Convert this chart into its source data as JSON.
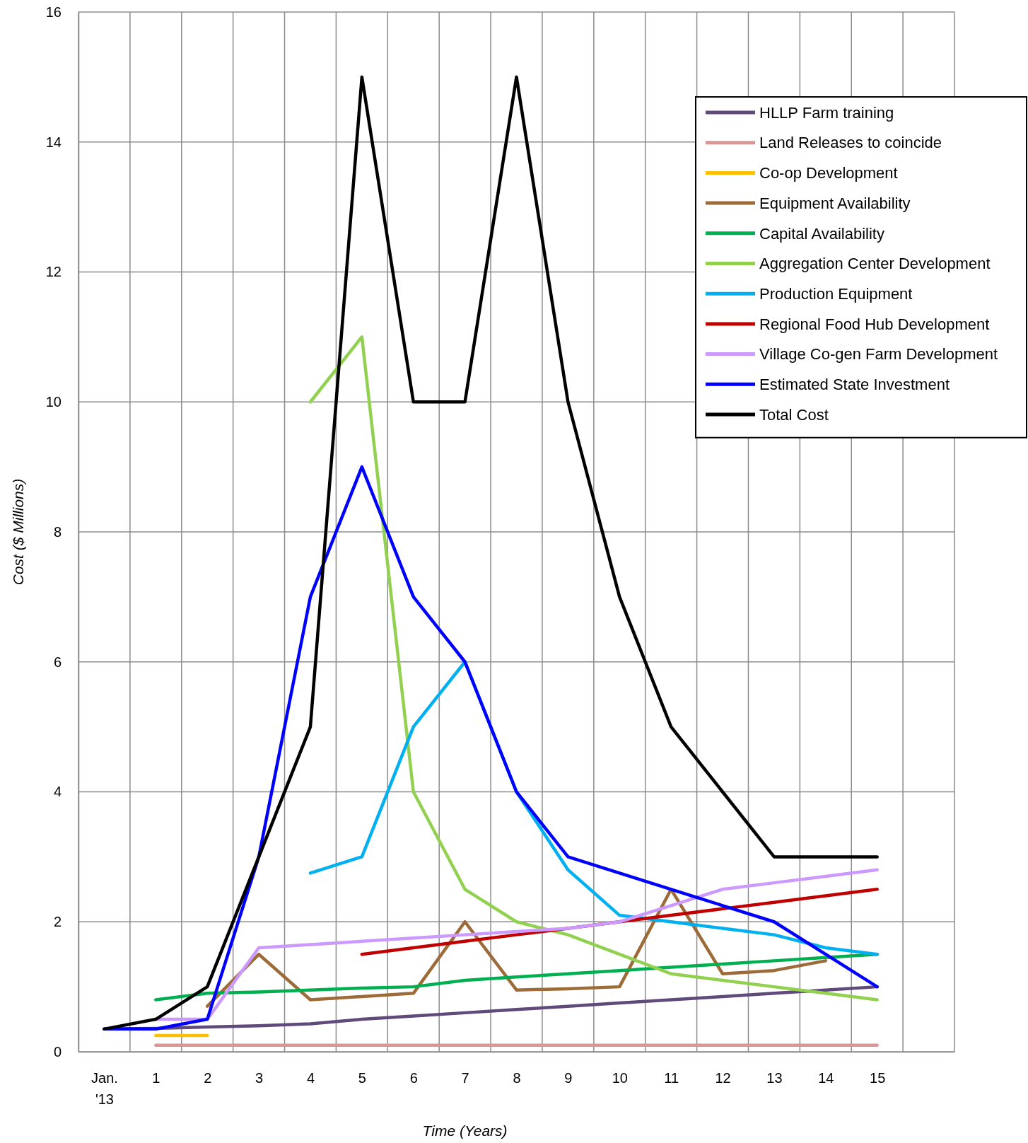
{
  "chart_data": {
    "type": "line",
    "xlabel": "Time (Years)",
    "ylabel": "Cost ($ Millions)",
    "xlim": [
      -0.5,
      16.5
    ],
    "ylim": [
      0,
      16
    ],
    "xticks": [
      {
        "value": -0.5,
        "label": null
      },
      {
        "value": 0,
        "label": "Jan. '13"
      },
      {
        "value": 0.5,
        "label": null
      },
      1,
      {
        "value": 1.5,
        "label": null
      },
      2,
      {
        "value": 2.5,
        "label": null
      },
      3,
      {
        "value": 3.5,
        "label": null
      },
      4,
      {
        "value": 4.5,
        "label": null
      },
      5,
      {
        "value": 5.5,
        "label": null
      },
      6,
      {
        "value": 6.5,
        "label": null
      },
      7,
      {
        "value": 7.5,
        "label": null
      },
      8,
      {
        "value": 8.5,
        "label": null
      },
      9,
      {
        "value": 9.5,
        "label": null
      },
      10,
      {
        "value": 10.5,
        "label": null
      },
      11,
      {
        "value": 11.5,
        "label": null
      },
      12,
      {
        "value": 12.5,
        "label": null
      },
      13,
      {
        "value": 13.5,
        "label": null
      },
      14,
      {
        "value": 14.5,
        "label": null
      },
      15,
      {
        "value": 15.5,
        "label": null
      },
      {
        "value": 16.5,
        "label": null
      }
    ],
    "yticks": [
      0,
      2,
      4,
      6,
      8,
      10,
      12,
      14,
      16
    ],
    "grid": true,
    "legend": "top right",
    "marker": "none",
    "line_style": "solid",
    "series": [
      {
        "name": "HLLP Farm training",
        "color": "#604a7b",
        "x": [
          0,
          1,
          2,
          3,
          4,
          5,
          6,
          7,
          8,
          9,
          10,
          11,
          12,
          13,
          14,
          15
        ],
        "values": [
          0.35,
          0.36,
          0.38,
          0.4,
          0.43,
          0.5,
          0.55,
          0.6,
          0.65,
          0.7,
          0.75,
          0.8,
          0.85,
          0.9,
          0.95,
          1.0
        ]
      },
      {
        "name": "Land Releases to coincide",
        "color": "#d99694",
        "x": [
          1,
          2,
          3,
          4,
          5,
          6,
          7,
          8,
          9,
          10,
          11,
          12,
          13,
          14,
          15
        ],
        "values": [
          0.1,
          0.1,
          0.1,
          0.1,
          0.1,
          0.1,
          0.1,
          0.1,
          0.1,
          0.1,
          0.1,
          0.1,
          0.1,
          0.1,
          0.1
        ]
      },
      {
        "name": "Co-op Development",
        "color": "#ffc000",
        "x": [
          1,
          2
        ],
        "values": [
          0.25,
          0.25
        ]
      },
      {
        "name": "Equipment Availability",
        "color": "#9c6b38",
        "x": [
          2,
          3,
          4,
          5,
          6,
          7,
          8,
          9,
          10,
          11,
          12,
          13,
          14
        ],
        "values": [
          0.7,
          1.5,
          0.8,
          0.85,
          0.9,
          2.0,
          0.95,
          0.97,
          1.0,
          2.5,
          1.2,
          1.25,
          1.4
        ]
      },
      {
        "name": "Capital Availability",
        "color": "#00b050",
        "x": [
          1,
          2,
          3,
          4,
          5,
          6,
          7,
          8,
          9,
          10,
          11,
          12,
          13,
          14,
          15
        ],
        "values": [
          0.8,
          0.9,
          0.92,
          0.95,
          0.98,
          1.0,
          1.1,
          1.15,
          1.2,
          1.25,
          1.3,
          1.35,
          1.4,
          1.45,
          1.5
        ]
      },
      {
        "name": "Aggregation Center Development",
        "color": "#92d050",
        "x": [
          4,
          5,
          6,
          7,
          8,
          9,
          10,
          11,
          12,
          13,
          14,
          15
        ],
        "values": [
          10,
          11,
          4,
          2.5,
          2.0,
          1.8,
          1.5,
          1.2,
          1.1,
          1.0,
          0.9,
          0.8
        ]
      },
      {
        "name": "Production Equipment",
        "color": "#00b0f0",
        "x": [
          4,
          5,
          6,
          7,
          8,
          9,
          10,
          11,
          12,
          13,
          14,
          15
        ],
        "values": [
          2.75,
          3.0,
          5.0,
          6.0,
          4.0,
          2.8,
          2.1,
          2.0,
          1.9,
          1.8,
          1.6,
          1.5
        ]
      },
      {
        "name": "Regional Food Hub Development",
        "color": "#c00000",
        "x": [
          5,
          6,
          7,
          8,
          9,
          10,
          11,
          12,
          13,
          14,
          15
        ],
        "values": [
          1.5,
          1.6,
          1.7,
          1.8,
          null,
          2.0,
          2.1,
          2.2,
          2.3,
          2.4,
          2.5
        ]
      },
      {
        "name": "Village Co-gen Farm Development",
        "color": "#cc99ff",
        "x": [
          1,
          2,
          3,
          4,
          5,
          6,
          7,
          8,
          9,
          10,
          11,
          12,
          13,
          14,
          15
        ],
        "values": [
          0.5,
          0.5,
          1.6,
          1.65,
          1.7,
          1.75,
          1.8,
          1.85,
          1.9,
          2.0,
          2.25,
          2.5,
          2.6,
          2.7,
          2.8
        ]
      },
      {
        "name": "Estimated State Investment",
        "color": "#0000ff",
        "x": [
          0,
          1,
          2,
          3,
          4,
          5,
          6,
          7,
          8,
          9,
          10,
          11,
          12,
          13,
          14,
          15
        ],
        "values": [
          0.35,
          0.35,
          0.5,
          3.0,
          7.0,
          9.0,
          7.0,
          6.0,
          4.0,
          3.0,
          2.75,
          2.5,
          2.25,
          2.0,
          1.5,
          1.0
        ]
      },
      {
        "name": "Total Cost",
        "color": "#000000",
        "x": [
          0,
          1,
          2,
          3,
          4,
          5,
          6,
          7,
          8,
          9,
          10,
          11,
          12,
          13,
          14,
          15
        ],
        "values": [
          0.35,
          0.5,
          1.0,
          3.0,
          5.0,
          15,
          10,
          10,
          15,
          10,
          7,
          5,
          4,
          3,
          3,
          3
        ]
      }
    ]
  }
}
